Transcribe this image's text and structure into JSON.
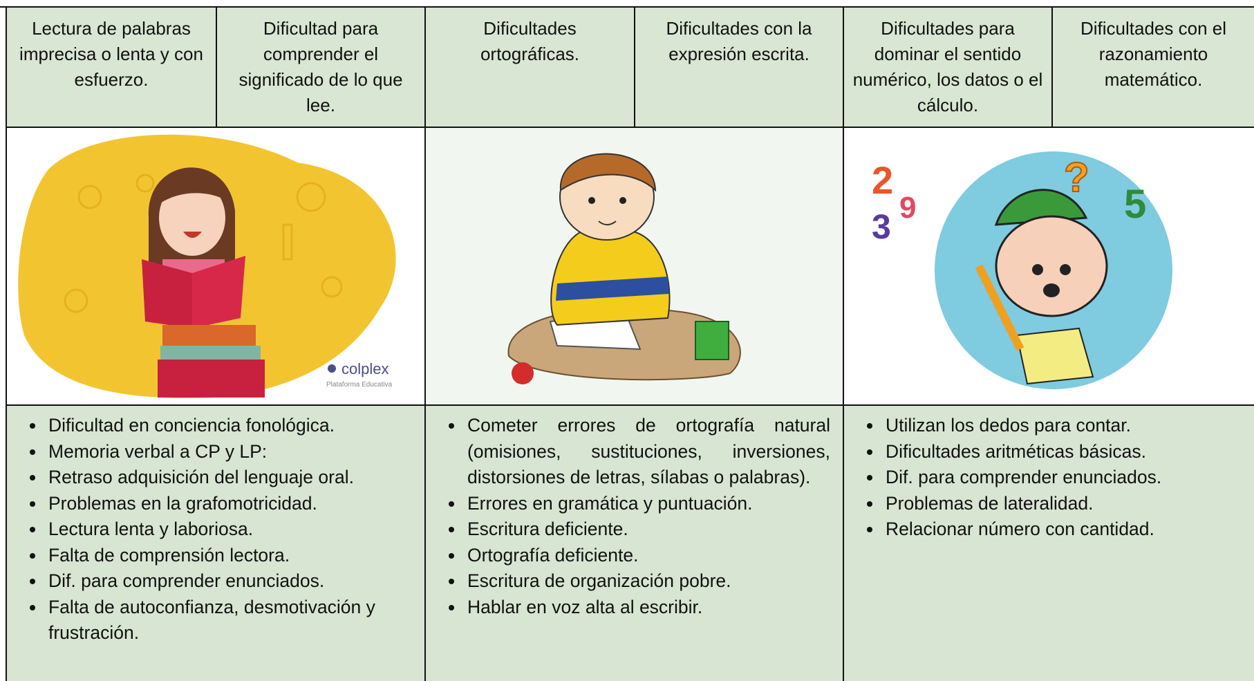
{
  "table": {
    "headers": [
      "Lectura de palabras imprecisa o lenta y con esfuerzo.",
      "Dificultad para comprender el significado de lo que lee.",
      "Dificultades ortográficas.",
      "Dificultades con la expresión escrita.",
      "Dificultades para dominar el sentido numérico, los datos o el cálculo.",
      "Dificultades con el razonamiento matemático."
    ],
    "image_texts": {
      "logo": "colplex",
      "logo_subtitle": "Plataforma Educativa",
      "numbers": [
        "2",
        "9",
        "3",
        "5",
        "?"
      ]
    },
    "lists": [
      [
        "Dificultad en conciencia fonológica.",
        "Memoria verbal a CP y LP:",
        "Retraso adquisición del lenguaje oral.",
        "Problemas en la grafomotricidad.",
        "Lectura lenta y laboriosa.",
        "Falta de comprensión lectora.",
        "Dif. para comprender enunciados.",
        "Falta de autoconfianza, desmotivación y frustración."
      ],
      [
        "Cometer errores de ortografía natural (omisiones, sustituciones, inversiones, distorsiones de letras, sílabas o palabras).",
        "Errores en gramática y puntuación.",
        "Escritura deficiente.",
        "Ortografía deficiente.",
        "Escritura de organización pobre.",
        "Hablar en voz alta al escribir."
      ],
      [
        "Utilizan los dedos para contar.",
        "Dificultades aritméticas básicas.",
        "Dif. para comprender enunciados.",
        "Problemas de lateralidad.",
        "Relacionar número con cantidad."
      ]
    ]
  }
}
